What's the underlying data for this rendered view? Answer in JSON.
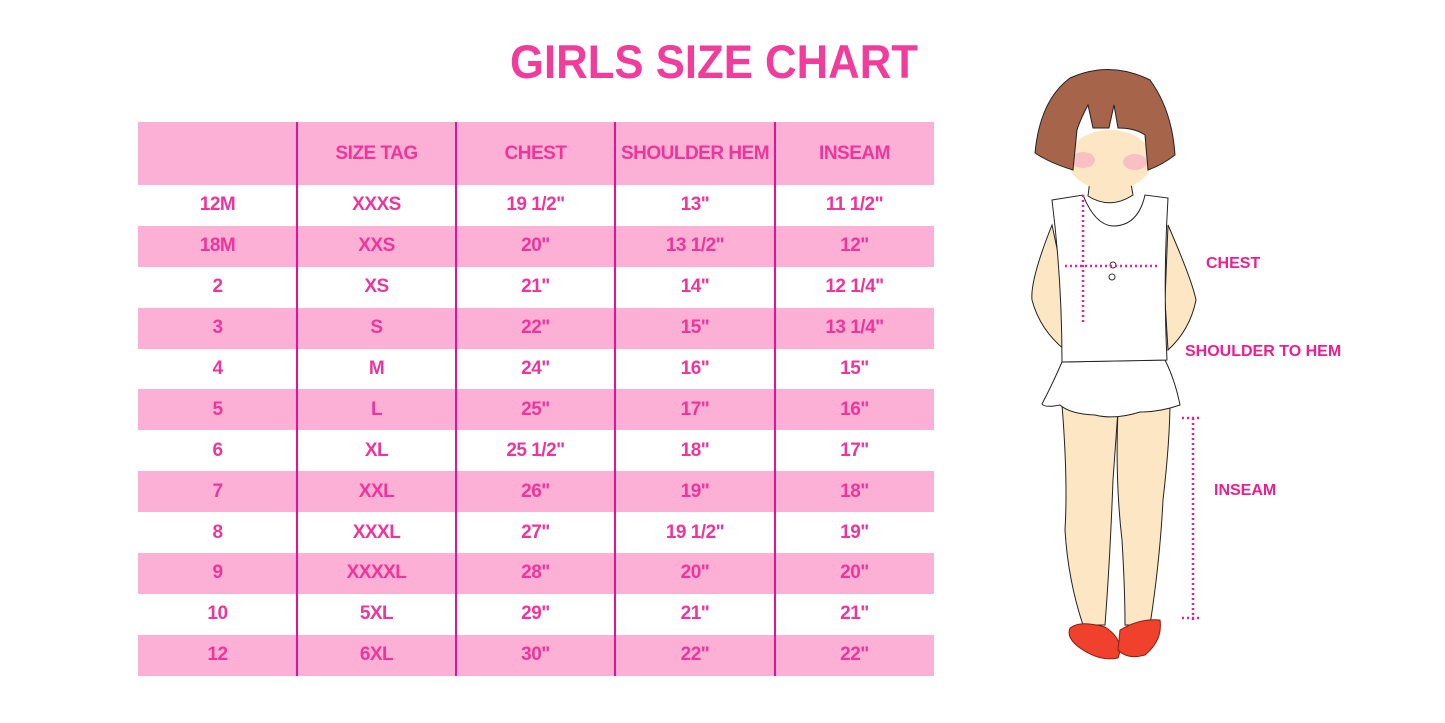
{
  "title": "GIRLS SIZE CHART",
  "table": {
    "headers": [
      "",
      "SIZE TAG",
      "CHEST",
      "SHOULDER HEM",
      "INSEAM"
    ],
    "rows": [
      [
        "12M",
        "XXXS",
        "19 1/2\"",
        "13\"",
        "11 1/2\""
      ],
      [
        "18M",
        "XXS",
        "20\"",
        "13 1/2\"",
        "12\""
      ],
      [
        "2",
        "XS",
        "21\"",
        "14\"",
        "12 1/4\""
      ],
      [
        "3",
        "S",
        "22\"",
        "15\"",
        "13 1/4\""
      ],
      [
        "4",
        "M",
        "24\"",
        "16\"",
        "15\""
      ],
      [
        "5",
        "L",
        "25\"",
        "17\"",
        "16\""
      ],
      [
        "6",
        "XL",
        "25 1/2\"",
        "18\"",
        "17\""
      ],
      [
        "7",
        "XXL",
        "26\"",
        "19\"",
        "18\""
      ],
      [
        "8",
        "XXXL",
        "27\"",
        "19 1/2\"",
        "19\""
      ],
      [
        "9",
        "XXXXL",
        "28\"",
        "20\"",
        "20\""
      ],
      [
        "10",
        "5XL",
        "29\"",
        "21\"",
        "21\""
      ],
      [
        "12",
        "6XL",
        "30\"",
        "22\"",
        "22\""
      ]
    ]
  },
  "figure": {
    "labels": {
      "chest": "CHEST",
      "shoulder_to_hem": "SHOULDER TO HEM",
      "inseam": "INSEAM"
    }
  },
  "colors": {
    "accent": "#f03d9c",
    "row_pink": "#fcb0d6",
    "divider": "#e2139a",
    "measure_line": "#ef1e8c"
  }
}
